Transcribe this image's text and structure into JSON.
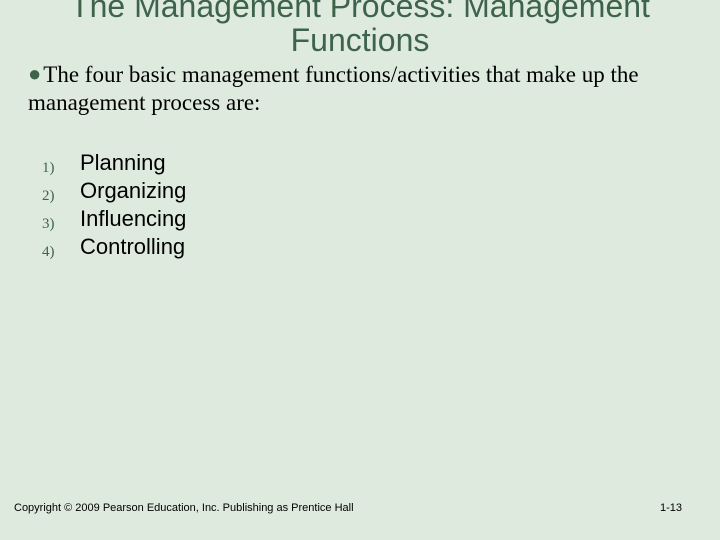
{
  "title": "The Management Process: Management Functions",
  "intro": "The four basic management functions/activities that make up the management process are:",
  "list": [
    {
      "num": "1)",
      "text": "Planning"
    },
    {
      "num": "2)",
      "text": "Organizing"
    },
    {
      "num": "3)",
      "text": "Influencing"
    },
    {
      "num": "4)",
      "text": "Controlling"
    }
  ],
  "footer": "Copyright © 2009 Pearson Education, Inc. Publishing as Prentice Hall",
  "pagenum": "1-13",
  "colors": {
    "background": "#deeade",
    "title_color": "#3e634b",
    "bullet_color": "#3e634b",
    "text_color": "#000000"
  },
  "typography": {
    "title_fontsize": 32,
    "intro_fontsize": 23,
    "list_text_fontsize": 22,
    "list_num_fontsize": 15,
    "footer_fontsize": 11
  }
}
